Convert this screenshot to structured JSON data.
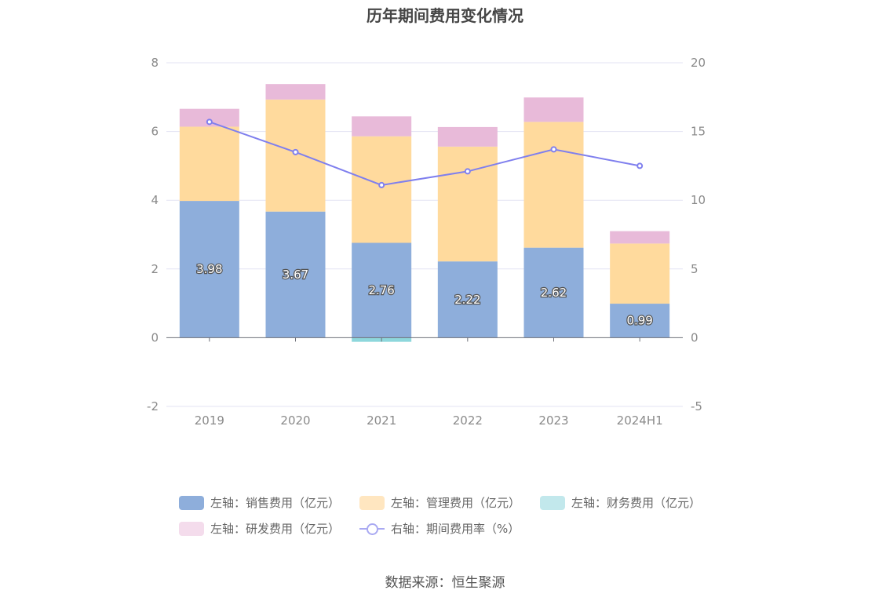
{
  "chart_data": {
    "type": "bar",
    "title": "历年期间费用变化情况",
    "categories": [
      "2019",
      "2020",
      "2021",
      "2022",
      "2023",
      "2024H1"
    ],
    "stacked": true,
    "series": [
      {
        "name": "左轴：销售费用（亿元）",
        "axis": "left",
        "color": "#8eaedb",
        "values": [
          3.98,
          3.67,
          2.76,
          2.22,
          2.62,
          0.99
        ]
      },
      {
        "name": "左轴：管理费用（亿元）",
        "axis": "left",
        "color": "#ffda9d",
        "values": [
          2.16,
          3.26,
          3.1,
          3.34,
          3.66,
          1.75
        ]
      },
      {
        "name": "左轴：财务费用（亿元）",
        "axis": "left",
        "color": "#8ed7dc",
        "values": [
          0.0,
          0.0,
          -0.12,
          0.0,
          0.0,
          0.0
        ]
      },
      {
        "name": "左轴：研发费用（亿元）",
        "axis": "left",
        "color": "#e8bad9",
        "values": [
          0.52,
          0.45,
          0.58,
          0.57,
          0.71,
          0.36
        ]
      }
    ],
    "line_series": {
      "name": "右轴：期间费用率（%）",
      "axis": "right",
      "color": "#7f7fee",
      "values": [
        15.7,
        13.5,
        11.1,
        12.1,
        13.7,
        12.5
      ]
    },
    "bar_labels": [
      "3.98",
      "3.67",
      "2.76",
      "2.22",
      "2.62",
      "0.99"
    ],
    "left_axis": {
      "min": -2,
      "max": 8,
      "ticks": [
        -2,
        0,
        2,
        4,
        6,
        8
      ]
    },
    "right_axis": {
      "min": -5,
      "max": 20,
      "ticks": [
        -5,
        0,
        5,
        10,
        15,
        20
      ]
    },
    "grid": true,
    "legend_position": "bottom"
  },
  "legend": [
    {
      "label": "左轴：销售费用（亿元）",
      "color": "#8eaedb",
      "kind": "box"
    },
    {
      "label": "左轴：管理费用（亿元）",
      "color": "#ffe6c0",
      "kind": "box"
    },
    {
      "label": "左轴：财务费用（亿元）",
      "color": "#c2e8ec",
      "kind": "box"
    },
    {
      "label": "左轴：研发费用（亿元）",
      "color": "#f4dcec",
      "kind": "box"
    },
    {
      "label": "右轴：期间费用率（%）",
      "color": "#a9a9f2",
      "kind": "line"
    }
  ],
  "source": "数据来源：恒生聚源"
}
